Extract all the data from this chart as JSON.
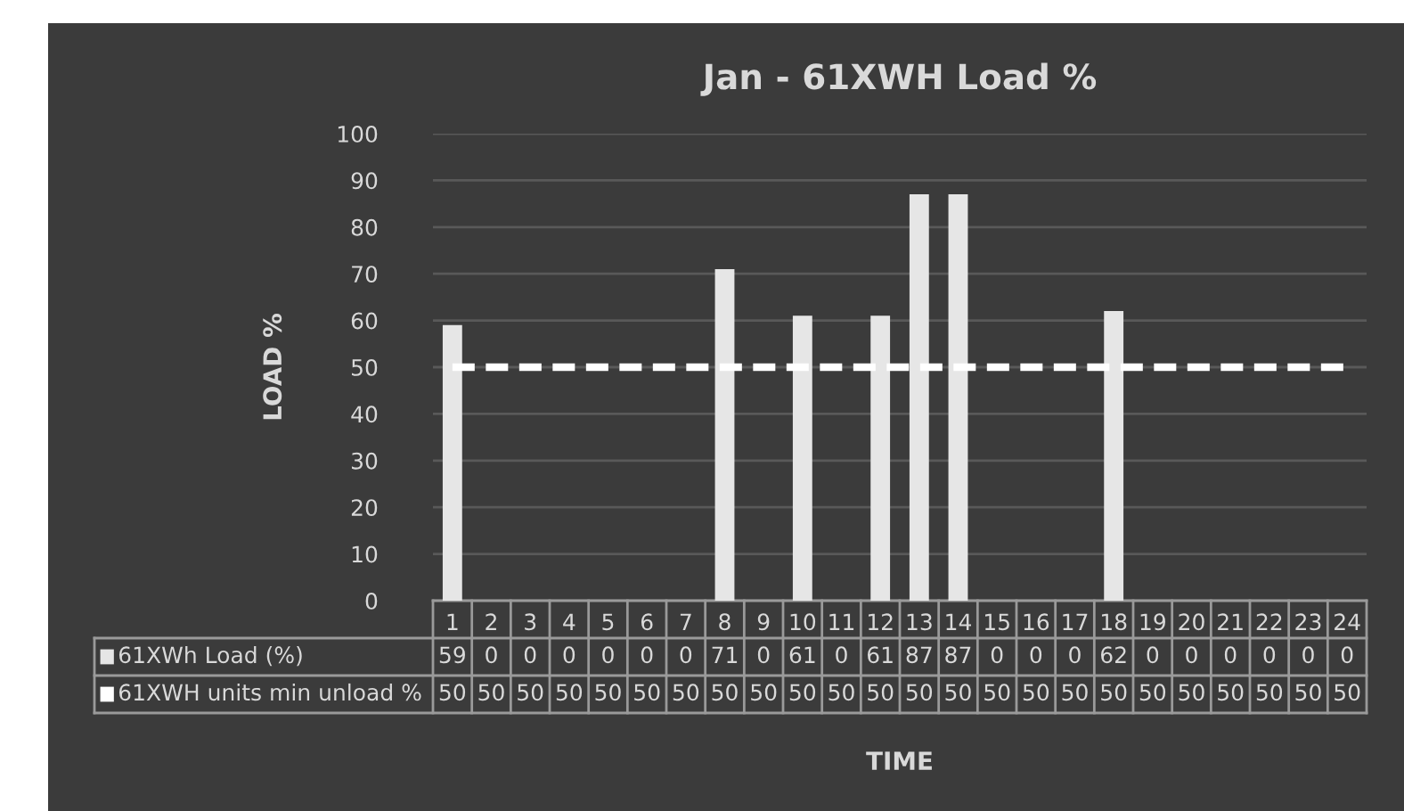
{
  "chart_data": {
    "type": "bar",
    "title": "Jan - 61XWH Load %",
    "xlabel": "TIME",
    "ylabel": "LOAD %",
    "categories": [
      "1",
      "2",
      "3",
      "4",
      "5",
      "6",
      "7",
      "8",
      "9",
      "10",
      "11",
      "12",
      "13",
      "14",
      "15",
      "16",
      "17",
      "18",
      "19",
      "20",
      "21",
      "22",
      "23",
      "24"
    ],
    "series": [
      {
        "name": "61XWh Load (%)",
        "color": "#e6e6e6",
        "values": [
          59,
          0,
          0,
          0,
          0,
          0,
          0,
          71,
          0,
          61,
          0,
          61,
          87,
          87,
          0,
          0,
          0,
          62,
          0,
          0,
          0,
          0,
          0,
          0
        ]
      },
      {
        "name": "61XWH units min unload %",
        "type": "line",
        "line_style": "dashed",
        "color": "#ffffff",
        "values": [
          50,
          50,
          50,
          50,
          50,
          50,
          50,
          50,
          50,
          50,
          50,
          50,
          50,
          50,
          50,
          50,
          50,
          50,
          50,
          50,
          50,
          50,
          50,
          50
        ]
      }
    ],
    "ylim": [
      0,
      100
    ],
    "yticks": [
      0,
      10,
      20,
      30,
      40,
      50,
      60,
      70,
      80,
      90,
      100
    ],
    "grid": "y",
    "data_labels": true,
    "legend": "bottom"
  }
}
